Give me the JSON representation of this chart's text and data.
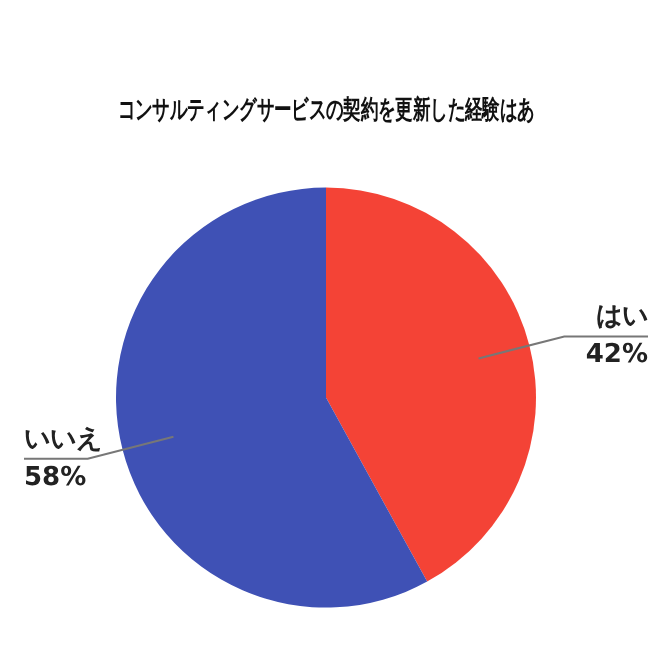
{
  "chart_data": {
    "type": "pie",
    "title": "コンサルティングサービスの契約を更新した経験はあ",
    "categories": [
      "はい",
      "いいえ"
    ],
    "values": [
      42,
      58
    ],
    "colors": [
      "#f44336",
      "#3f51b5"
    ],
    "value_labels": [
      "42%",
      "58%"
    ],
    "legend": false
  }
}
